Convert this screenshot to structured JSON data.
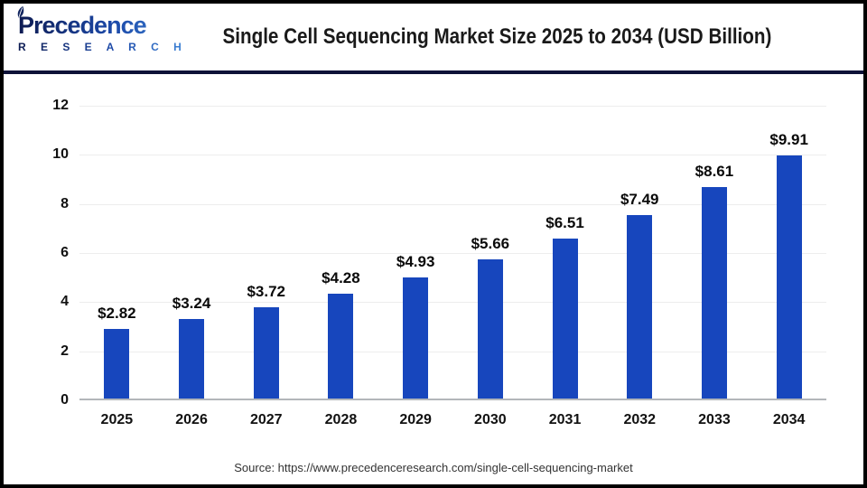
{
  "header": {
    "logo": {
      "name": "Precedence",
      "subtitle": "R E S E A R C H"
    },
    "title": "Single Cell Sequencing Market Size 2025 to 2034 (USD Billion)"
  },
  "footer": {
    "source": "Source: https://www.precedenceresearch.com/single-cell-sequencing-market"
  },
  "chart_data": {
    "type": "bar",
    "title": "Single Cell Sequencing Market Size 2025 to 2034 (USD Billion)",
    "unit": "USD Billion",
    "categories": [
      "2025",
      "2026",
      "2027",
      "2028",
      "2029",
      "2030",
      "2031",
      "2032",
      "2033",
      "2034"
    ],
    "values": [
      2.82,
      3.24,
      3.72,
      4.28,
      4.93,
      5.66,
      6.51,
      7.49,
      8.61,
      9.91
    ],
    "value_labels": [
      "$2.82",
      "$3.24",
      "$3.72",
      "$4.28",
      "$4.93",
      "$5.66",
      "$6.51",
      "$7.49",
      "$8.61",
      "$9.91"
    ],
    "xlabel": "",
    "ylabel": "",
    "ylim": [
      0,
      12
    ],
    "yticks": [
      0,
      2,
      4,
      6,
      8,
      10,
      12
    ],
    "grid": "horizontal",
    "legend": "none",
    "bar_color": "#1746bd"
  },
  "colors": {
    "bar": "#1746bd",
    "divider_navy": "#0e1238",
    "outer_border": "#000000",
    "gridline": "#ededed",
    "axis_baseline": "#b3b6ba",
    "logo_gradient_start": "#0d1b52",
    "logo_gradient_end": "#3f86d8"
  }
}
